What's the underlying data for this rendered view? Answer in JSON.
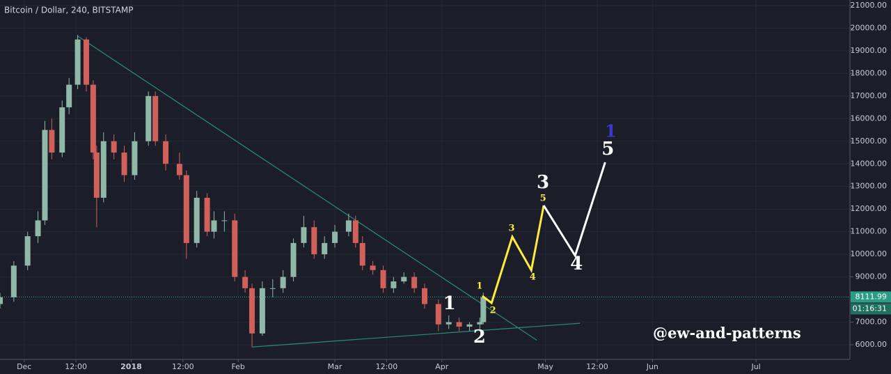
{
  "chart_data": {
    "type": "candlestick",
    "title": "Bitcoin / Dollar, 240, BITSTAMP",
    "watermark": "@ew-and-patterns",
    "up_color": "#8fb8a8",
    "down_color": "#d0605a",
    "x": [
      -7,
      -3,
      1,
      4,
      6,
      8,
      11,
      13,
      15.5,
      18,
      20,
      21,
      23,
      26,
      29,
      32,
      36,
      38,
      41,
      45,
      47,
      50,
      53,
      55,
      58,
      61,
      64,
      66,
      69,
      72,
      75,
      78,
      81,
      84,
      87,
      90,
      94,
      96,
      98,
      101,
      104,
      107,
      110,
      113,
      116,
      120,
      123,
      126,
      129,
      132,
      133
    ],
    "open": [
      7800,
      8100,
      9500,
      10800,
      11500,
      15500,
      14500,
      16500,
      17500,
      19500,
      17500,
      14500,
      12500,
      15000,
      14500,
      13500,
      15000,
      17000,
      15000,
      14000,
      13500,
      10500,
      12500,
      11000,
      11500,
      11500,
      9000,
      8500,
      6500,
      8500,
      8500,
      9000,
      10500,
      11200,
      10000,
      10500,
      11000,
      11500,
      10500,
      9500,
      9300,
      8500,
      8800,
      9000,
      8500,
      7800,
      6900,
      7000,
      6800,
      6900,
      7000
    ],
    "high": [
      8300,
      9700,
      11000,
      11900,
      15900,
      16000,
      16800,
      17800,
      19700,
      19600,
      17700,
      14800,
      15400,
      15300,
      14800,
      15400,
      17200,
      17200,
      15300,
      14500,
      13700,
      12800,
      12700,
      11900,
      11900,
      11800,
      9300,
      8700,
      8800,
      8900,
      9300,
      10700,
      11700,
      11500,
      10800,
      11300,
      11800,
      11700,
      10800,
      9700,
      9500,
      9000,
      9200,
      9200,
      8700,
      8000,
      7300,
      7200,
      7000,
      7200,
      8300
    ],
    "low": [
      7600,
      7900,
      9300,
      10500,
      11300,
      14200,
      14300,
      16200,
      17300,
      17200,
      14200,
      11200,
      12300,
      14200,
      13200,
      13300,
      14800,
      14800,
      13700,
      13300,
      9800,
      10300,
      10800,
      10700,
      11000,
      8800,
      8300,
      5900,
      6400,
      8100,
      8300,
      8800,
      10300,
      9800,
      9800,
      10300,
      10800,
      10300,
      9300,
      9100,
      8300,
      8300,
      8700,
      8300,
      7600,
      6600,
      6700,
      6600,
      6600,
      6700,
      6900
    ],
    "close": [
      8100,
      9500,
      10800,
      11500,
      15500,
      14500,
      16500,
      17500,
      19500,
      17500,
      14500,
      12500,
      15000,
      14500,
      13500,
      15000,
      17000,
      15000,
      14000,
      13500,
      10500,
      12500,
      11000,
      11500,
      11500,
      9000,
      8500,
      6500,
      8500,
      8500,
      9000,
      10500,
      11200,
      10000,
      10500,
      11000,
      11500,
      10500,
      9500,
      9300,
      8500,
      8800,
      9000,
      8500,
      7800,
      6900,
      7000,
      6800,
      6900,
      7000,
      8100
    ],
    "xlim": [
      -7,
      239
    ],
    "ylim": [
      5384,
      21246
    ],
    "xticks": [
      {
        "value": 0,
        "label": "Dec"
      },
      {
        "value": 15,
        "label": "12:00"
      },
      {
        "value": 31,
        "label": "2018"
      },
      {
        "value": 46,
        "label": "12:00"
      },
      {
        "value": 62,
        "label": "Feb"
      },
      {
        "value": 90,
        "label": "Mar"
      },
      {
        "value": 105,
        "label": "12:00"
      },
      {
        "value": 121,
        "label": "Apr"
      },
      {
        "value": 151,
        "label": "May"
      },
      {
        "value": 166,
        "label": "12:00"
      },
      {
        "value": 182,
        "label": "Jun"
      },
      {
        "value": 212,
        "label": "Jul"
      }
    ],
    "yticks": [
      {
        "value": 6000,
        "label": "6000.00"
      },
      {
        "value": 7000,
        "label": "7000.00"
      },
      {
        "value": 8000,
        "label": "8000.00"
      },
      {
        "value": 9000,
        "label": "9000.00"
      },
      {
        "value": 10000,
        "label": "10000.00"
      },
      {
        "value": 11000,
        "label": "11000.00"
      },
      {
        "value": 12000,
        "label": "12000.00"
      },
      {
        "value": 13000,
        "label": "13000.00"
      },
      {
        "value": 14000,
        "label": "14000.00"
      },
      {
        "value": 15000,
        "label": "15000.00"
      },
      {
        "value": 16000,
        "label": "16000.00"
      },
      {
        "value": 17000,
        "label": "17000.00"
      },
      {
        "value": 18000,
        "label": "18000.00"
      },
      {
        "value": 19000,
        "label": "19000.00"
      },
      {
        "value": 20000,
        "label": "20000.00"
      },
      {
        "value": 21000,
        "label": "21000.00"
      }
    ],
    "grid": true,
    "last_price": {
      "value": 8111.99,
      "label": "8111.99"
    },
    "countdown": "01:16:31",
    "trend_lines": [
      {
        "color": "#2a8c7a",
        "x": [
          15.5,
          148.5
        ],
        "y": [
          19650,
          6200
        ]
      },
      {
        "color": "#2a8c7a",
        "x": [
          66,
          161
        ],
        "y": [
          5900,
          6950
        ]
      }
    ],
    "projections": [
      {
        "color": "#ffeb3b",
        "x": [
          132.7,
          135.4,
          141.4,
          146.9,
          150.5
        ],
        "y": [
          8156,
          7848,
          10774,
          9296,
          12160
        ]
      },
      {
        "color": "#ffffff",
        "x": [
          150.5,
          159.6,
          168.3
        ],
        "y": [
          12160,
          9942,
          14070
        ]
      }
    ],
    "wave_labels": [
      {
        "color": "#ffeb3b",
        "labels": [
          {
            "text": "1",
            "x": 131.9,
            "y": 8587
          },
          {
            "text": "2",
            "x": 135.8,
            "y": 7509
          },
          {
            "text": "3",
            "x": 141.2,
            "y": 11144
          },
          {
            "text": "4",
            "x": 147.3,
            "y": 8988
          },
          {
            "text": "5",
            "x": 150.3,
            "y": 12468
          }
        ]
      },
      {
        "color": "#ffffff",
        "labels": [
          {
            "text": "1",
            "x": 123.2,
            "y": 7786
          },
          {
            "text": "2",
            "x": 131.9,
            "y": 6308
          },
          {
            "text": "3",
            "x": 150.3,
            "y": 13146
          },
          {
            "text": "4",
            "x": 160,
            "y": 9542
          },
          {
            "text": "5",
            "x": 169.1,
            "y": 14624
          }
        ]
      },
      {
        "color": "#3a3ad0",
        "labels": [
          {
            "text": "1",
            "x": 169.9,
            "y": 15394
          }
        ]
      }
    ]
  }
}
